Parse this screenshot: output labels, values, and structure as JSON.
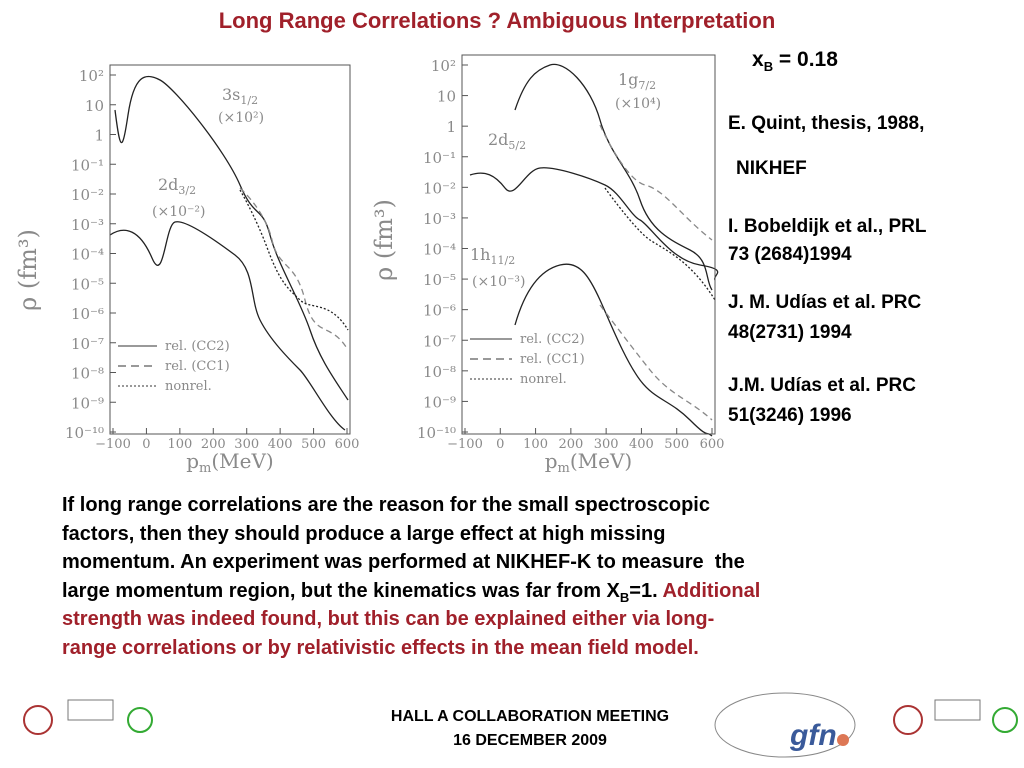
{
  "title": "Long Range Correlations ? Ambiguous Interpretation",
  "xb": {
    "var": "x",
    "sub": "B",
    "rest": " = 0.18"
  },
  "references": [
    "E. Quint, thesis, 1988,",
    "NIKHEF",
    "I. Bobeldijk et al., PRL",
    "73 (2684)1994",
    "J. M. Udías et al. PRC",
    "48(2731) 1994",
    "J.M. Udías et al. PRC",
    "51(3246) 1996"
  ],
  "paragraph": [
    [
      {
        "text": "If long range correlations are the reason for the small spectroscopic",
        "color": "#000000"
      }
    ],
    [
      {
        "text": "factors, then they should produce a large effect at high missing",
        "color": "#000000"
      }
    ],
    [
      {
        "text": "momentum. An experiment was performed at NIKHEF-K to measure  the",
        "color": "#000000"
      }
    ],
    [
      {
        "text": "large momentum region, but the kinematics was far from X",
        "color": "#000000"
      },
      {
        "text": "B",
        "color": "#000000",
        "sub": true
      },
      {
        "text": "=1. ",
        "color": "#000000"
      },
      {
        "text": "Additional",
        "color": "#a0202a"
      }
    ],
    [
      {
        "text": "strength was indeed found, but this can be explained either via long-",
        "color": "#a0202a"
      }
    ],
    [
      {
        "text": "range correlations or by relativistic effects in the mean field model.",
        "color": "#a0202a"
      }
    ]
  ],
  "figures": [
    {
      "ylabel": "ρ (fm³)",
      "xlabel": {
        "var": "p",
        "sub": "m",
        "unit": "(MeV)"
      },
      "yticks": [
        "10²",
        "10",
        "1",
        "10⁻¹",
        "10⁻²",
        "10⁻³",
        "10⁻⁴",
        "10⁻⁵",
        "10⁻⁶",
        "10⁻⁷",
        "10⁻⁸",
        "10⁻⁹",
        "10⁻¹⁰"
      ],
      "xticks": [
        "−100",
        "0",
        "100",
        "200",
        "300",
        "400",
        "500",
        "600"
      ],
      "annotations": [
        {
          "label": "3s",
          "sub": "1/2",
          "factor": "(×10²)"
        },
        {
          "label": "2d",
          "sub": "3/2",
          "factor": "(×10⁻²)"
        }
      ],
      "legend": [
        "rel. (CC2)",
        "rel. (CC1)",
        "nonrel."
      ]
    },
    {
      "ylabel": "ρ (fm³)",
      "xlabel": {
        "var": "p",
        "sub": "m",
        "unit": "(MeV)"
      },
      "yticks": [
        "10²",
        "10",
        "1",
        "10⁻¹",
        "10⁻²",
        "10⁻³",
        "10⁻⁴",
        "10⁻⁵",
        "10⁻⁶",
        "10⁻⁷",
        "10⁻⁸",
        "10⁻⁹",
        "10⁻¹⁰"
      ],
      "xticks": [
        "−100",
        "0",
        "100",
        "200",
        "300",
        "400",
        "500",
        "600"
      ],
      "annotations": [
        {
          "label": "1g",
          "sub": "7/2",
          "factor": "(×10⁴)"
        },
        {
          "label": "2d",
          "sub": "5/2"
        },
        {
          "label": "1h",
          "sub": "11/2",
          "factor": "(×10⁻³)"
        }
      ],
      "legend": [
        "rel. (CC2)",
        "rel. (CC1)",
        "nonrel."
      ]
    }
  ],
  "footer": [
    "HALL A COLLABORATION MEETING",
    "16 DECEMBER 2009"
  ],
  "logo": "gfn"
}
